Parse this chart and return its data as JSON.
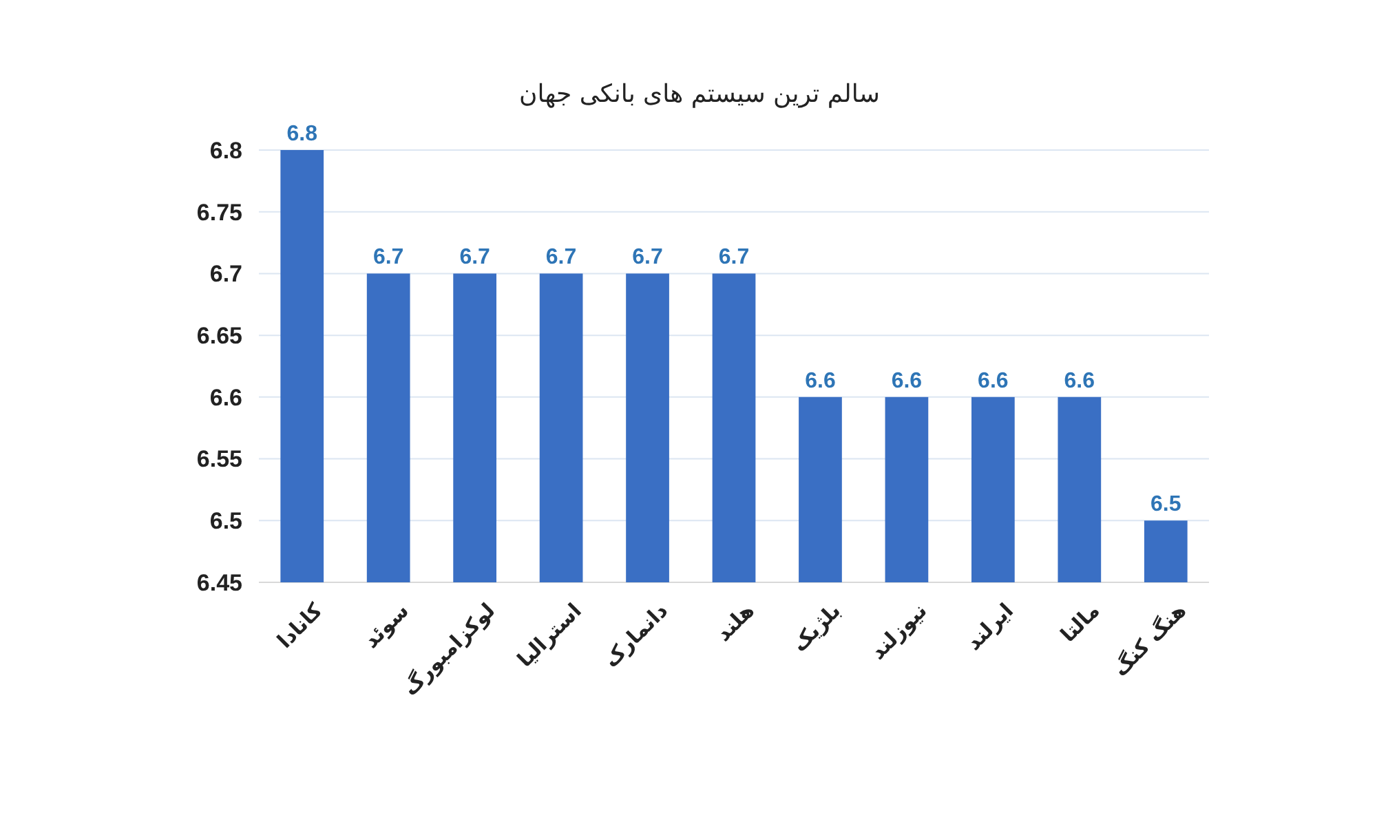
{
  "chart_data": {
    "type": "bar",
    "title": "سالم ترین سیستم های بانکی جهان",
    "categories": [
      "کانادا",
      "سوئد",
      "لوکزامبورگ",
      "استرالیا",
      "دانمارک",
      "هلند",
      "بلژیک",
      "نیوزلند",
      "ایرلند",
      "مالتا",
      "هنگ کنگ"
    ],
    "values": [
      6.8,
      6.7,
      6.7,
      6.7,
      6.7,
      6.7,
      6.6,
      6.6,
      6.6,
      6.6,
      6.5
    ],
    "color": "#3a6fc4",
    "ylim": [
      6.45,
      6.8
    ],
    "yticks": [
      6.45,
      6.5,
      6.55,
      6.6,
      6.65,
      6.7,
      6.75,
      6.8
    ],
    "grid": "y",
    "data_labels": true
  }
}
